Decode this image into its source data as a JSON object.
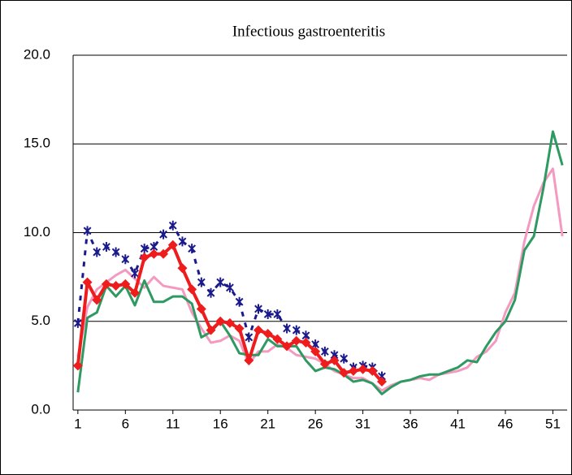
{
  "chart_data": {
    "type": "line",
    "title": "Infectious gastroenteritis",
    "x": [
      1,
      2,
      3,
      4,
      5,
      6,
      7,
      8,
      9,
      10,
      11,
      12,
      13,
      14,
      15,
      16,
      17,
      18,
      19,
      20,
      21,
      22,
      23,
      24,
      25,
      26,
      27,
      28,
      29,
      30,
      31,
      32,
      33,
      34,
      35,
      36,
      37,
      38,
      39,
      40,
      41,
      42,
      43,
      44,
      45,
      46,
      47,
      48,
      49,
      50,
      51,
      52
    ],
    "xlim": [
      0.5,
      52.5
    ],
    "xticks": [
      1,
      6,
      11,
      16,
      21,
      26,
      31,
      36,
      41,
      46,
      51
    ],
    "ylim": [
      0,
      20
    ],
    "yticks": [
      {
        "value": 0,
        "label": "0.0"
      },
      {
        "value": 5,
        "label": "5.0"
      },
      {
        "value": 10,
        "label": "10.0"
      },
      {
        "value": 15,
        "label": "15.0"
      },
      {
        "value": 20,
        "label": "20.0"
      }
    ],
    "grid": true,
    "series": [
      {
        "color": "#f49ac1",
        "marker": "none",
        "dash": false,
        "values": [
          3.0,
          5.8,
          6.8,
          7.2,
          7.6,
          7.9,
          7.4,
          6.9,
          7.5,
          7.0,
          6.9,
          6.8,
          5.5,
          4.6,
          3.8,
          3.9,
          4.2,
          3.9,
          2.6,
          3.3,
          3.3,
          3.7,
          3.5,
          3.1,
          3.0,
          2.9,
          2.6,
          2.2,
          2.0,
          1.8,
          1.8,
          1.5,
          1.1,
          1.4,
          1.6,
          1.7,
          1.8,
          1.7,
          2.0,
          2.1,
          2.2,
          2.4,
          3.0,
          3.3,
          3.9,
          5.5,
          6.6,
          9.5,
          11.5,
          12.8,
          13.6,
          9.8
        ]
      },
      {
        "color": "#2e9960",
        "marker": "none",
        "dash": false,
        "values": [
          1.0,
          5.2,
          5.5,
          7.0,
          6.4,
          7.0,
          5.9,
          7.3,
          6.1,
          6.1,
          6.4,
          6.4,
          6.0,
          4.1,
          4.4,
          5.0,
          4.2,
          3.2,
          3.1,
          3.1,
          4.0,
          3.6,
          3.6,
          3.6,
          2.8,
          2.2,
          2.4,
          2.3,
          2.0,
          1.6,
          1.7,
          1.5,
          0.9,
          1.3,
          1.6,
          1.7,
          1.9,
          2.0,
          2.0,
          2.2,
          2.4,
          2.8,
          2.7,
          3.6,
          4.4,
          5.0,
          6.2,
          9.0,
          9.8,
          12.5,
          15.7,
          13.8
        ]
      },
      {
        "color": "#1a1a8c",
        "marker": "star",
        "dash": true,
        "values": [
          4.9,
          10.1,
          8.9,
          9.2,
          8.9,
          8.5,
          7.7,
          9.1,
          9.2,
          9.9,
          10.4,
          9.5,
          9.1,
          7.2,
          6.6,
          7.2,
          6.9,
          6.1,
          4.1,
          5.7,
          5.4,
          5.4,
          4.6,
          4.5,
          4.2,
          3.7,
          3.3,
          3.1,
          2.9,
          2.4,
          2.5,
          2.4,
          1.9,
          null,
          null,
          null,
          null,
          null,
          null,
          null,
          null,
          null,
          null,
          null,
          null,
          null,
          null,
          null,
          null,
          null,
          null,
          null
        ]
      },
      {
        "color": "#ee1c1c",
        "marker": "diamond",
        "dash": false,
        "values": [
          2.5,
          7.2,
          6.2,
          7.1,
          7.0,
          7.1,
          6.6,
          8.6,
          8.8,
          8.8,
          9.3,
          8.0,
          6.8,
          5.7,
          4.5,
          5.0,
          4.9,
          4.6,
          2.8,
          4.5,
          4.3,
          4.0,
          3.6,
          3.9,
          3.8,
          3.3,
          2.6,
          2.8,
          2.1,
          2.2,
          2.3,
          2.2,
          1.6,
          null,
          null,
          null,
          null,
          null,
          null,
          null,
          null,
          null,
          null,
          null,
          null,
          null,
          null,
          null,
          null,
          null,
          null,
          null
        ]
      }
    ]
  }
}
